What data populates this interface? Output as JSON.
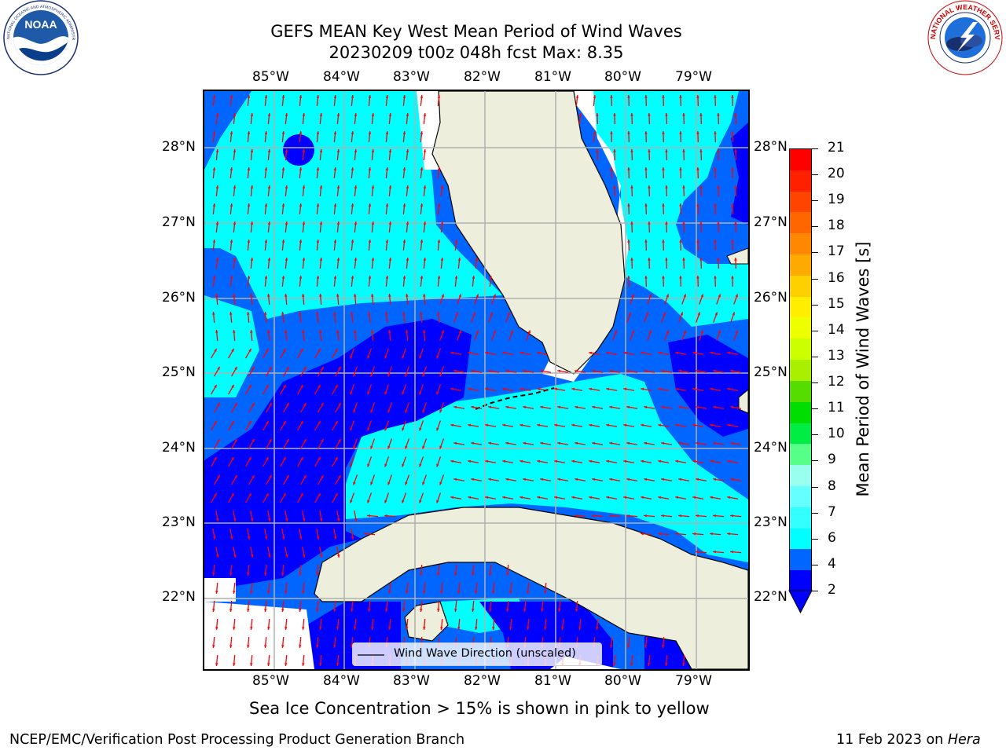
{
  "header": {
    "title_line1": "GEFS MEAN Key West Mean Period of Wind Waves",
    "title_line2": "20230209 t00z 048h fcst   Max: 8.35"
  },
  "logos": {
    "left": {
      "name": "noaa-logo",
      "text": "NOAA",
      "ring_text": "NATIONAL OCEANIC AND ATMOSPHERIC ADMINISTRATION · U.S. DEPARTMENT OF COMMERCE"
    },
    "right": {
      "name": "nws-logo",
      "ring_text": "NATIONAL WEATHER SERVICE"
    }
  },
  "map": {
    "lon_labels": [
      "85°W",
      "84°W",
      "83°W",
      "82°W",
      "81°W",
      "80°W",
      "79°W"
    ],
    "lat_labels": [
      "28°N",
      "27°N",
      "26°N",
      "25°N",
      "24°N",
      "23°N",
      "22°N"
    ],
    "legend_label": "Wind Wave Direction (unscaled)",
    "colors": {
      "land": "#eeeedd",
      "band_2_4": "#0066ff",
      "band_4_6": "#00ffff",
      "band_under_2": "#0000ff",
      "arrow": "#ff0000"
    }
  },
  "colorbar": {
    "label": "Mean Period of Wind Waves [s]",
    "ticks": [
      "21",
      "20",
      "19",
      "18",
      "17",
      "16",
      "15",
      "14",
      "13",
      "12",
      "11",
      "10",
      "9",
      "8",
      "7",
      "6",
      "4",
      "2"
    ],
    "colors": [
      "#ff0000",
      "#ff2000",
      "#ff4400",
      "#ff6600",
      "#ff8800",
      "#ffaa00",
      "#ffd000",
      "#ffee00",
      "#eeff00",
      "#ccff00",
      "#aaee00",
      "#55dd00",
      "#00dd00",
      "#00ee44",
      "#55ff88",
      "#99ffee",
      "#66ffff",
      "#33ffff",
      "#00ffff",
      "#0066ff",
      "#0000ff"
    ]
  },
  "footer": {
    "sea_ice_note": "Sea Ice Concentration > 15% is shown in pink to yellow",
    "branch": "NCEP/EMC/Verification Post Processing Product Generation Branch",
    "date": "11 Feb 2023 on ",
    "machine": "Hera"
  }
}
